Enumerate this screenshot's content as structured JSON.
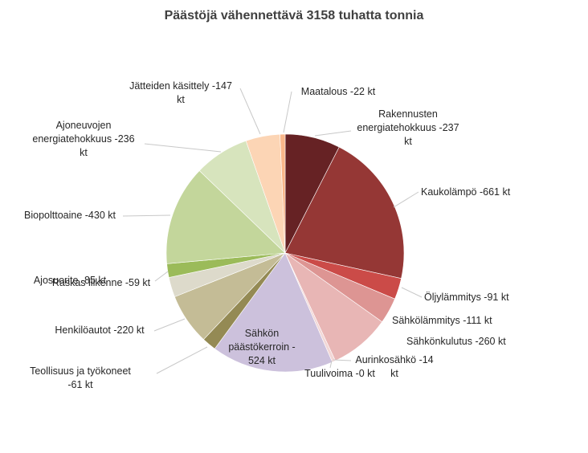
{
  "chart_data": {
    "type": "pie",
    "title": "Päästöjä vähennettävä 3158 tuhatta tonnia",
    "slices": [
      {
        "label": "Rakennusten energiatehokkuus -237 kt",
        "value": 237,
        "color": "#662224"
      },
      {
        "label": "Kaukolämpö -661 kt",
        "value": 661,
        "color": "#953735"
      },
      {
        "label": "Öljylämmitys -91 kt",
        "value": 91,
        "color": "#cb4b48"
      },
      {
        "label": "Sähkölämmitys -111 kt",
        "value": 111,
        "color": "#dd9593"
      },
      {
        "label": "Sähkönkulutus -260 kt",
        "value": 260,
        "color": "#e8b6b5"
      },
      {
        "label": "Aurinkosähkö -14 kt",
        "value": 14,
        "color": "#f2d7d6"
      },
      {
        "label": "Tuulivoima -0 kt",
        "value": 0,
        "color": "#f6e4e3"
      },
      {
        "label": "Sähkön päästökerroin - 524 kt",
        "value": 524,
        "color": "#ccc1dc"
      },
      {
        "label": "Teollisuus ja työkoneet -61 kt",
        "value": 61,
        "color": "#948a54"
      },
      {
        "label": "Henkilöautot -220 kt",
        "value": 220,
        "color": "#c4bc96"
      },
      {
        "label": "Ajosuorite -85 kt",
        "value": 85,
        "color": "#dddacb"
      },
      {
        "label": "Raskas liikenne -59 kt",
        "value": 59,
        "color": "#9bbb59"
      },
      {
        "label": "Biopolttoaine -430 kt",
        "value": 430,
        "color": "#c3d69b"
      },
      {
        "label": "Ajoneuvojen energiatehokkuus -236 kt",
        "value": 236,
        "color": "#d7e4bd"
      },
      {
        "label": "Jätteiden käsittely -147 kt",
        "value": 147,
        "color": "#fcd5b5"
      },
      {
        "label": "Maatalous -22 kt",
        "value": 22,
        "color": "#f9b78a"
      }
    ]
  }
}
